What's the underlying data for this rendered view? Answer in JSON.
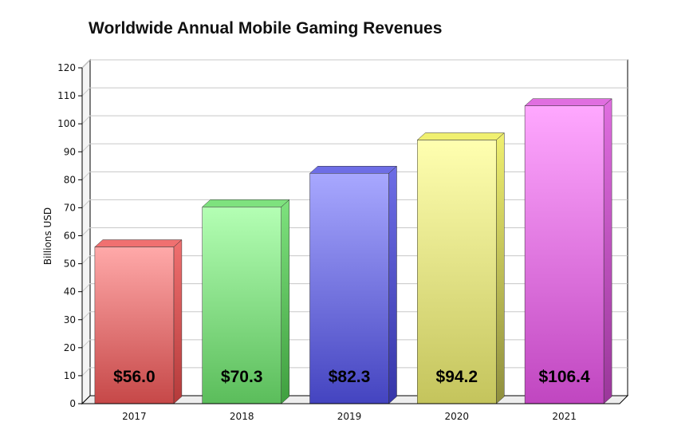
{
  "chart_data": {
    "type": "bar",
    "title": "Worldwide Annual Mobile Gaming Revenues",
    "xlabel": "",
    "ylabel": "Billions USD",
    "categories": [
      "2017",
      "2018",
      "2019",
      "2020",
      "2021"
    ],
    "values": [
      56.0,
      70.3,
      82.3,
      94.2,
      106.4
    ],
    "value_labels": [
      "$56.0",
      "$70.3",
      "$82.3",
      "$94.2",
      "$106.4"
    ],
    "ylim": [
      0,
      120
    ],
    "yticks": [
      "0",
      "10",
      "20",
      "30",
      "40",
      "50",
      "60",
      "70",
      "80",
      "90",
      "100",
      "110",
      "120"
    ],
    "grid": true,
    "legend": "none",
    "colors": [
      {
        "top": "#ffa9a9",
        "bottom": "#c64848",
        "side": "#b43a3a",
        "cap": "#f07070"
      },
      {
        "top": "#b4ffb4",
        "bottom": "#5bbd5b",
        "side": "#3f9f3f",
        "cap": "#7ee27e"
      },
      {
        "top": "#a8a8ff",
        "bottom": "#4444c0",
        "side": "#3535a8",
        "cap": "#6e6ee6"
      },
      {
        "top": "#ffffb0",
        "bottom": "#c4c45c",
        "side": "#8f8f3e",
        "cap": "#f0f070"
      },
      {
        "top": "#ffa8ff",
        "bottom": "#c046c0",
        "side": "#9a369a",
        "cap": "#e06ee0"
      }
    ]
  }
}
